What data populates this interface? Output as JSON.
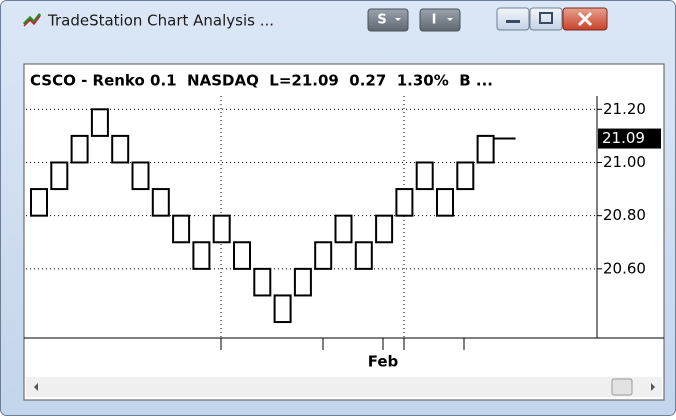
{
  "window": {
    "title": "TradeStation Chart Analysis ...",
    "buttons": [
      "S",
      "I"
    ]
  },
  "chart_data": {
    "type": "renko",
    "header": "CSCO - Renko 0.1  NASDAQ  L=21.09  0.27  1.30%  B ...",
    "box_size": 0.1,
    "values": [
      20.9,
      21.0,
      21.1,
      21.2,
      21.1,
      21.0,
      20.9,
      20.8,
      20.7,
      20.8,
      20.7,
      20.6,
      20.5,
      20.6,
      20.7,
      20.8,
      20.7,
      20.8,
      20.9,
      21.0,
      20.9,
      21.0,
      21.1
    ],
    "last": 21.09,
    "ylim": [
      20.34,
      21.25
    ],
    "yticks": [
      {
        "value": 20.6,
        "label": "20.60"
      },
      {
        "value": 20.8,
        "label": "20.80"
      },
      {
        "value": 21.0,
        "label": "21.00"
      },
      {
        "value": 21.2,
        "label": "21.20"
      }
    ],
    "xlabel": "Feb",
    "grid": true
  }
}
